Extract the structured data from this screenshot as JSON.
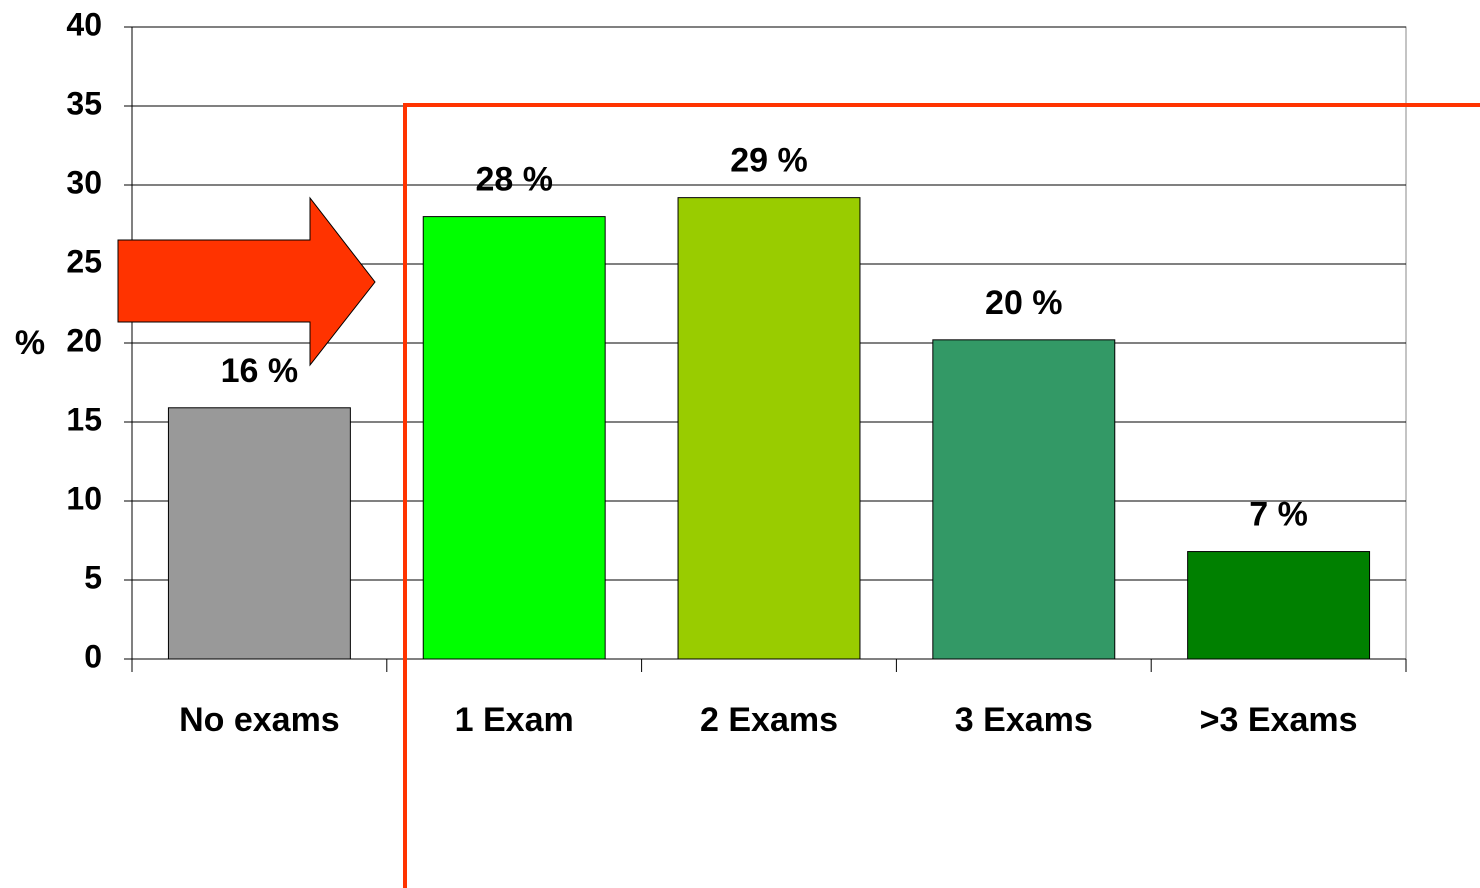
{
  "chart_data": {
    "type": "bar",
    "y_label": "%",
    "categories": [
      "No exams",
      "1 Exam",
      "2 Exams",
      "3 Exams",
      ">3 Exams"
    ],
    "values": [
      15.9,
      28,
      29.2,
      20.2,
      6.8
    ],
    "value_labels": [
      "16 %",
      "28 %",
      "29 %",
      "20 %",
      "7 %"
    ],
    "colors": [
      "#999999",
      "#00ff00",
      "#99cc00",
      "#339966",
      "#008000"
    ],
    "ylim": [
      0,
      40
    ],
    "yticks": [
      0,
      5,
      10,
      15,
      20,
      25,
      30,
      35,
      40
    ],
    "grid": true
  }
}
